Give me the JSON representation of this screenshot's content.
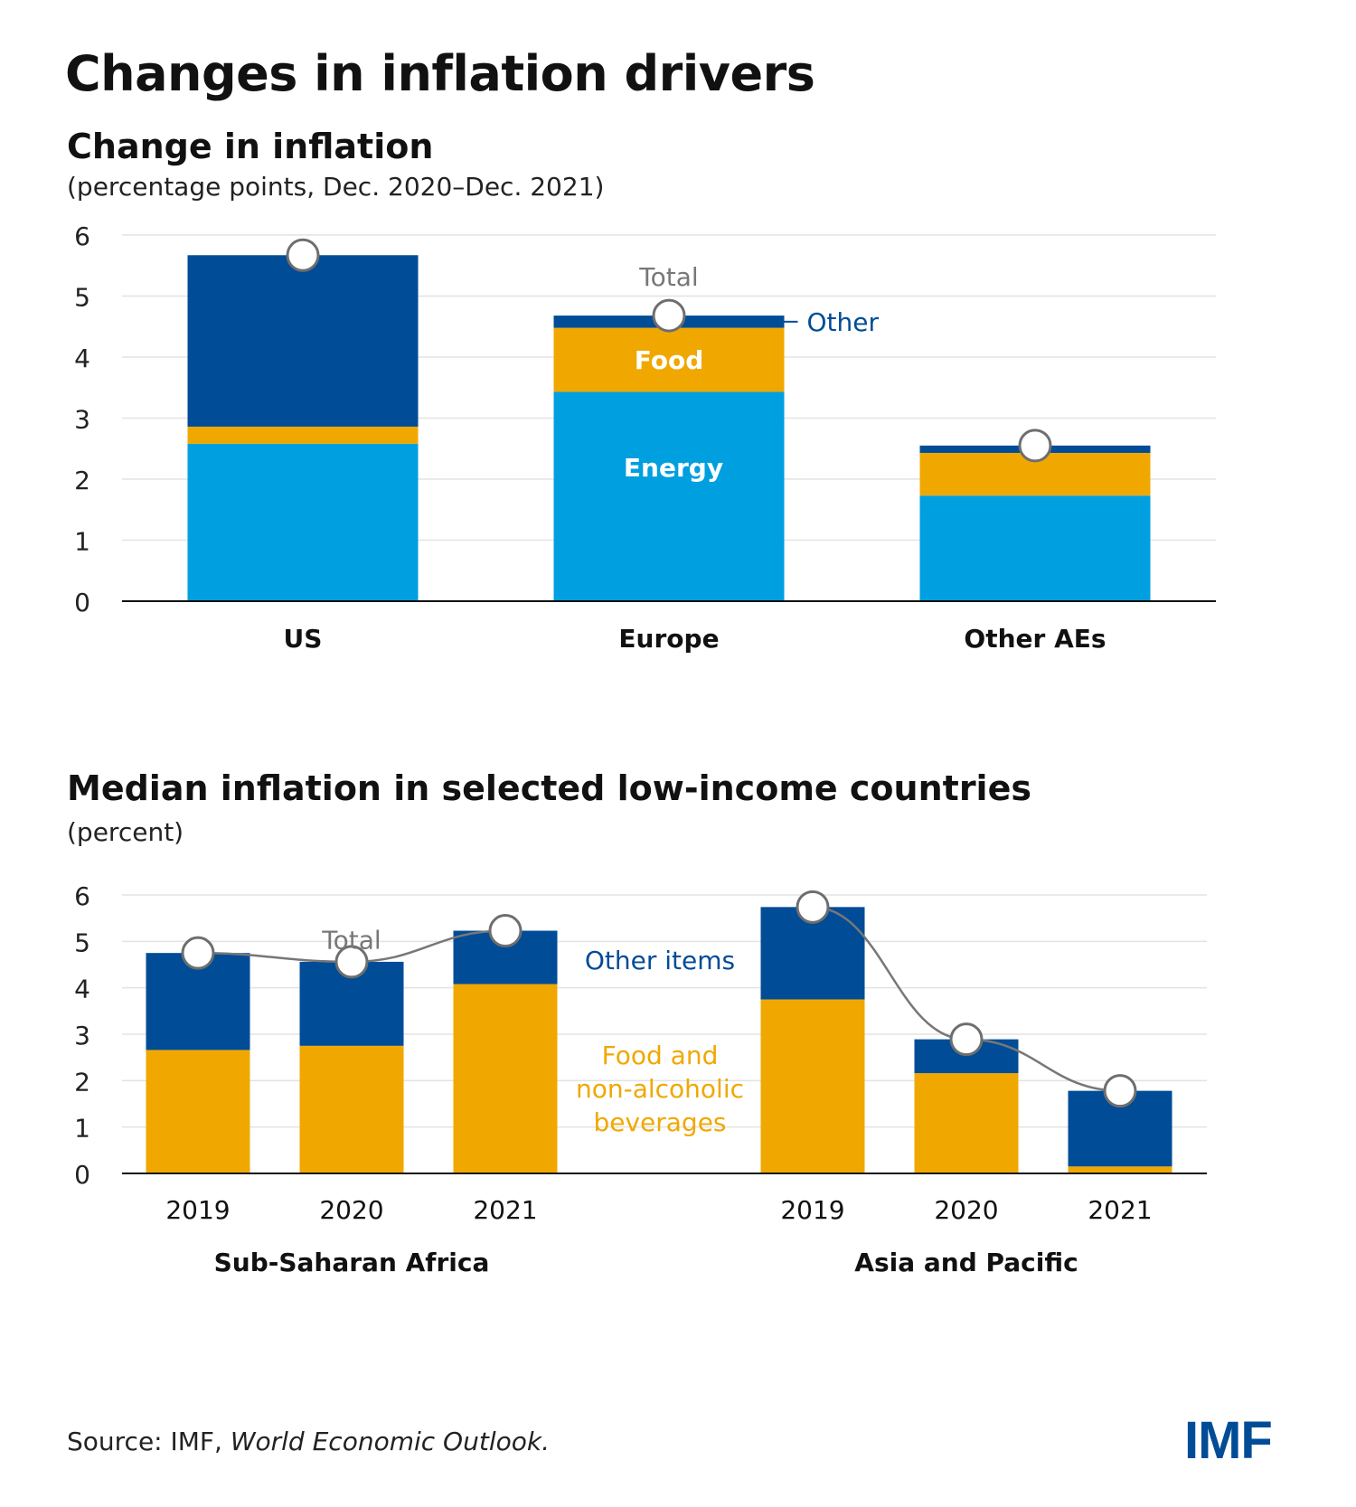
{
  "main_title": "Changes in inflation drivers",
  "colors": {
    "energy": "#009fdf",
    "food": "#f0a800",
    "other": "#004c97",
    "total_line": "#777777",
    "grid": "#e3e3e3"
  },
  "chart_data": [
    {
      "type": "bar",
      "stacked": true,
      "title": "Change in inflation",
      "subtitle": "(percentage points, Dec. 2020–Dec. 2021)",
      "ylim": [
        0,
        6
      ],
      "yticks": [
        0,
        1,
        2,
        3,
        4,
        5,
        6
      ],
      "categories": [
        "US",
        "Europe",
        "Other AEs"
      ],
      "series": [
        {
          "name": "Energy",
          "color": "#009fdf",
          "values": [
            2.58,
            3.43,
            1.73
          ]
        },
        {
          "name": "Food",
          "color": "#f0a800",
          "values": [
            0.28,
            1.05,
            0.7
          ]
        },
        {
          "name": "Other",
          "color": "#004c97",
          "values": [
            2.81,
            0.2,
            0.12
          ]
        }
      ],
      "total": {
        "name": "Total",
        "values": [
          5.67,
          4.68,
          2.55
        ]
      },
      "annotations": {
        "total_label": "Total",
        "other_label": "Other",
        "food_label": "Food",
        "energy_label": "Energy"
      }
    },
    {
      "type": "bar",
      "stacked": true,
      "title": "Median inflation in selected low-income countries",
      "subtitle": "(percent)",
      "ylim": [
        0,
        6
      ],
      "yticks": [
        0,
        1,
        2,
        3,
        4,
        5,
        6
      ],
      "groups": [
        {
          "name": "Sub-Saharan Africa",
          "categories": [
            "2019",
            "2020",
            "2021"
          ],
          "food": [
            2.66,
            2.75,
            4.08
          ],
          "other": [
            2.09,
            1.81,
            1.15
          ],
          "total": [
            4.75,
            4.56,
            5.23
          ]
        },
        {
          "name": "Asia and Pacific",
          "categories": [
            "2019",
            "2020",
            "2021"
          ],
          "food": [
            3.75,
            2.16,
            0.15
          ],
          "other": [
            1.99,
            0.73,
            1.63
          ],
          "total": [
            5.74,
            2.89,
            1.78
          ]
        }
      ],
      "annotations": {
        "total_label": "Total",
        "other_label": "Other items",
        "food_label_lines": [
          "Food and",
          "non-alcoholic",
          "beverages"
        ]
      }
    }
  ],
  "source": {
    "prefix": "Source: IMF, ",
    "italic": "World Economic Outlook."
  },
  "logo": "IMF"
}
